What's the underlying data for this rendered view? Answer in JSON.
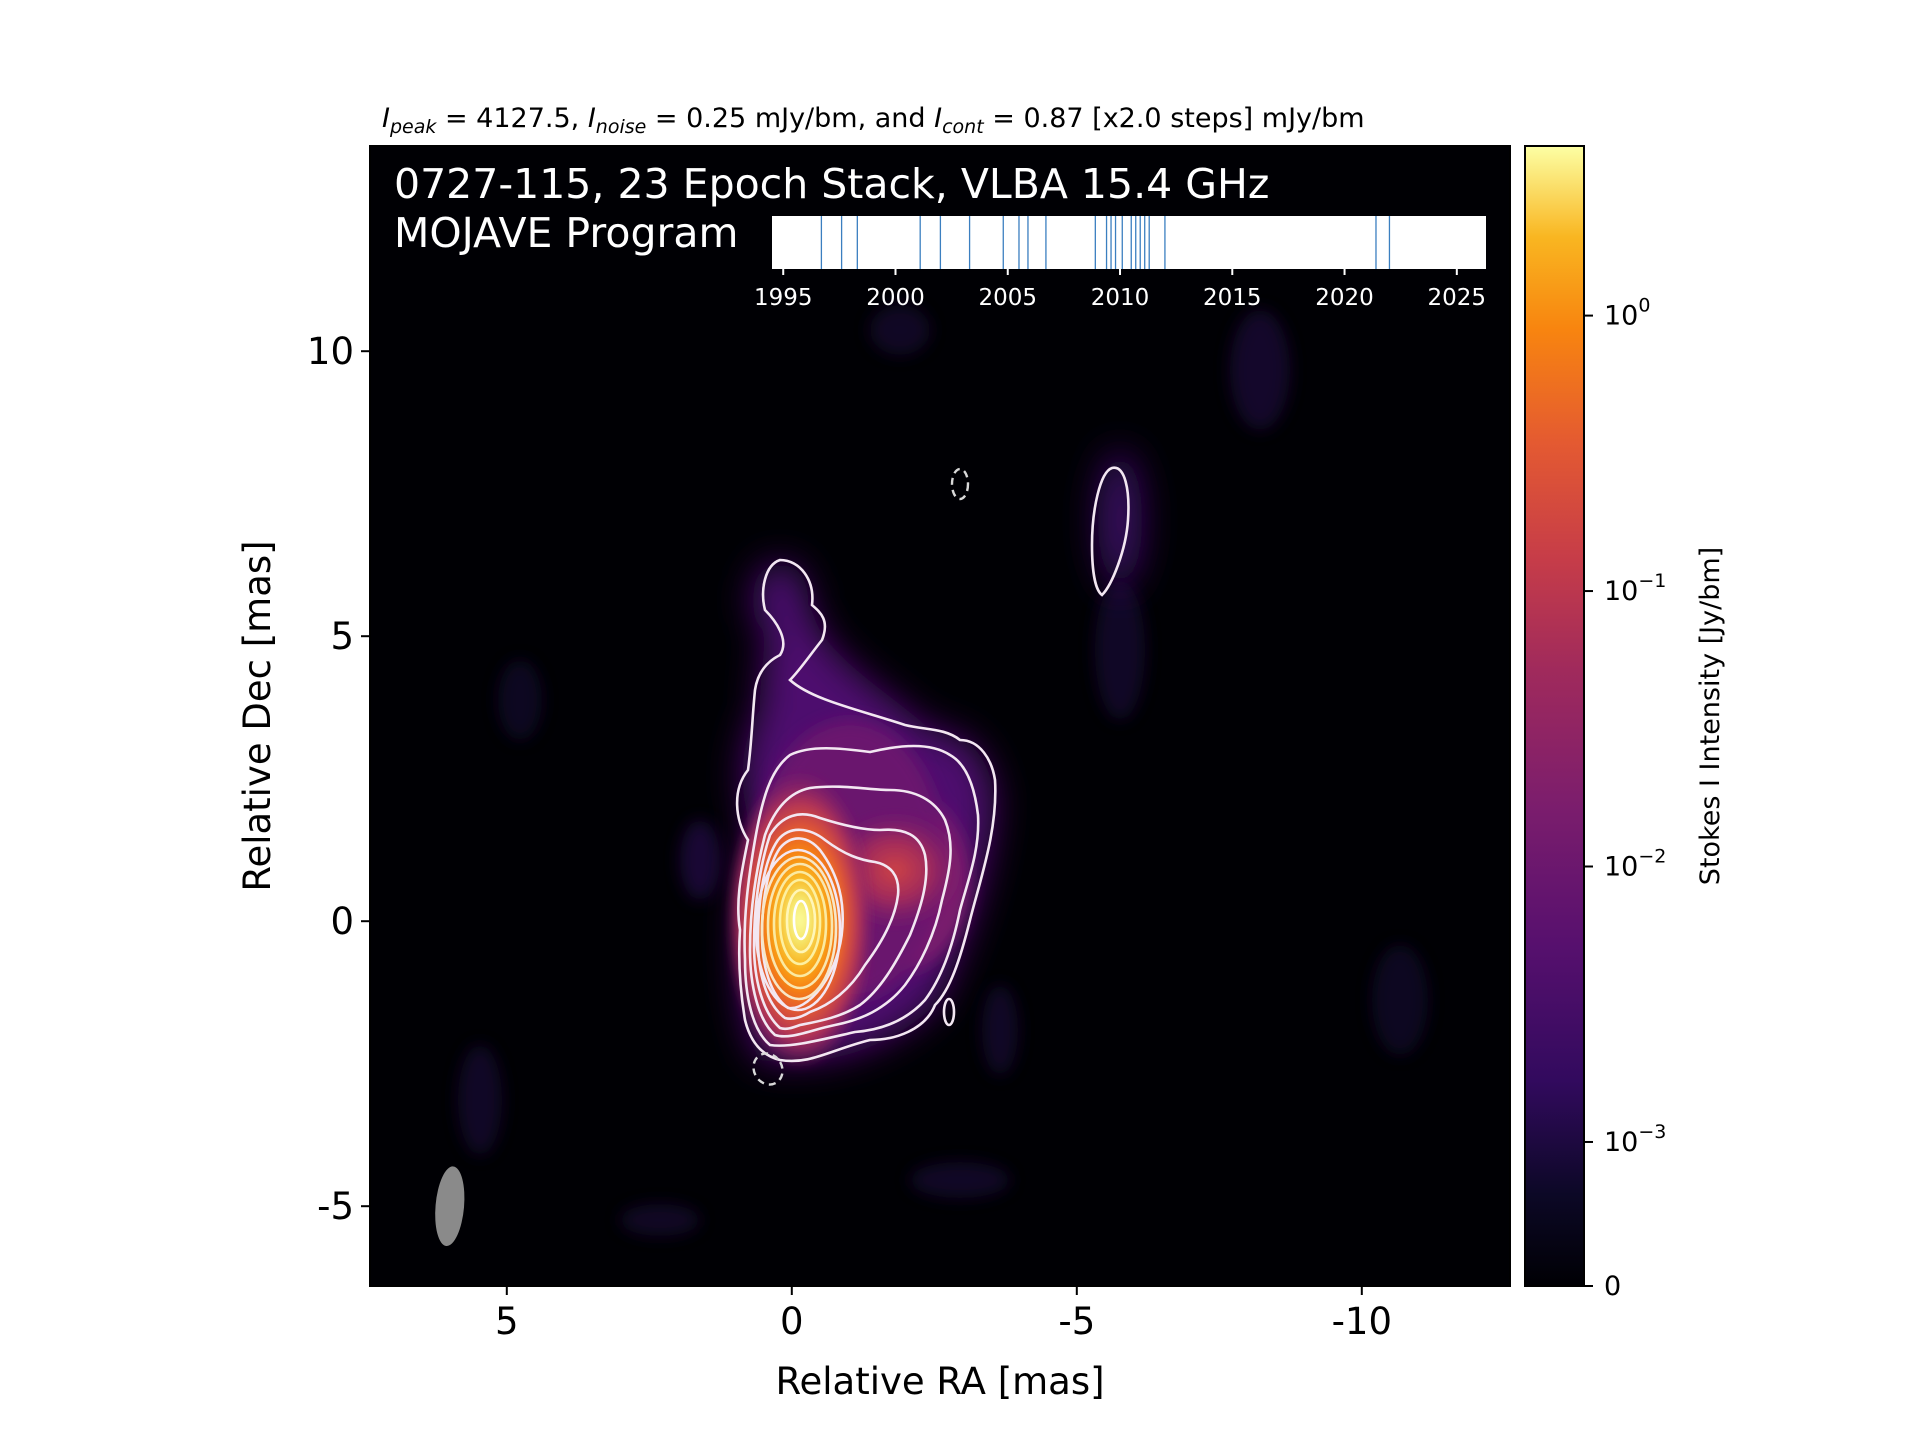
{
  "header": {
    "peak_sym": "I",
    "peak_sub": "peak",
    "peak_text": " = 4127.5, ",
    "noise_sym": "I",
    "noise_sub": "noise",
    "noise_text": " = 0.25 mJy/bm, and ",
    "cont_sym": "I",
    "cont_sub": "cont",
    "cont_text": " = 0.87 [x2.0 steps] mJy/bm"
  },
  "overlay": {
    "line1": "0727-115, 23 Epoch Stack, VLBA 15.4 GHz",
    "line2": "MOJAVE Program"
  },
  "chart_data": {
    "type": "heatmap",
    "xlabel": "Relative RA [mas]",
    "ylabel": "Relative Dec [mas]",
    "xlim": [
      7.4,
      -12.6
    ],
    "ylim": [
      -6.4,
      13.6
    ],
    "x_ticks": [
      {
        "v": 5,
        "label": "5"
      },
      {
        "v": 0,
        "label": "0"
      },
      {
        "v": -5,
        "label": "-5"
      },
      {
        "v": -10,
        "label": "-10"
      }
    ],
    "y_ticks": [
      {
        "v": 10,
        "label": "10"
      },
      {
        "v": 5,
        "label": "5"
      },
      {
        "v": 0,
        "label": "0"
      },
      {
        "v": -5,
        "label": "-5"
      }
    ],
    "core": {
      "ra": 0,
      "dec": 0,
      "peak_jy_per_bm": 4.1275
    },
    "jet_components": [
      {
        "ra": -1.8,
        "dec": 0.8,
        "peak_jy_per_bm": 0.02
      },
      {
        "ra": -2.5,
        "dec": 2.6,
        "peak_jy_per_bm": 0.003
      },
      {
        "ra": 0.3,
        "dec": 5.5,
        "peak_jy_per_bm": 0.0015
      },
      {
        "ra": -5.6,
        "dec": 6.8,
        "peak_jy_per_bm": 0.001
      }
    ],
    "contours": {
      "base_mjy_per_bm": 0.87,
      "step_factor": 2.0,
      "levels": 13
    },
    "negative_contours": [
      {
        "ra": 0.45,
        "dec": -2.6
      },
      {
        "ra": -2.9,
        "dec": 7.7
      }
    ],
    "beam": {
      "ra": 6.0,
      "dec": -5.0,
      "major_mas": 1.4,
      "minor_mas": 0.5,
      "pa_deg": 5
    },
    "colorbar": {
      "label": "Stokes I Intensity [Jy/bm]",
      "scale": "log",
      "colormap": "inferno",
      "ticks": [
        {
          "v": 0,
          "base": "0",
          "exp": ""
        },
        {
          "v": 0.001,
          "base": "10",
          "exp": "−3"
        },
        {
          "v": 0.01,
          "base": "10",
          "exp": "−2"
        },
        {
          "v": 0.1,
          "base": "10",
          "exp": "−1"
        },
        {
          "v": 1,
          "base": "10",
          "exp": "0"
        }
      ]
    },
    "epoch_timeline": {
      "xlim": [
        1994.5,
        2026.3
      ],
      "ticks": [
        1995,
        2000,
        2005,
        2010,
        2015,
        2020,
        2025
      ],
      "epochs": [
        1996.7,
        1997.6,
        1998.3,
        2001.1,
        2002.0,
        2003.3,
        2004.8,
        2005.5,
        2005.9,
        2006.7,
        2008.9,
        2009.4,
        2009.6,
        2009.8,
        2010.1,
        2010.5,
        2010.7,
        2010.9,
        2011.1,
        2011.3,
        2012.0,
        2021.4,
        2022.0
      ]
    }
  }
}
